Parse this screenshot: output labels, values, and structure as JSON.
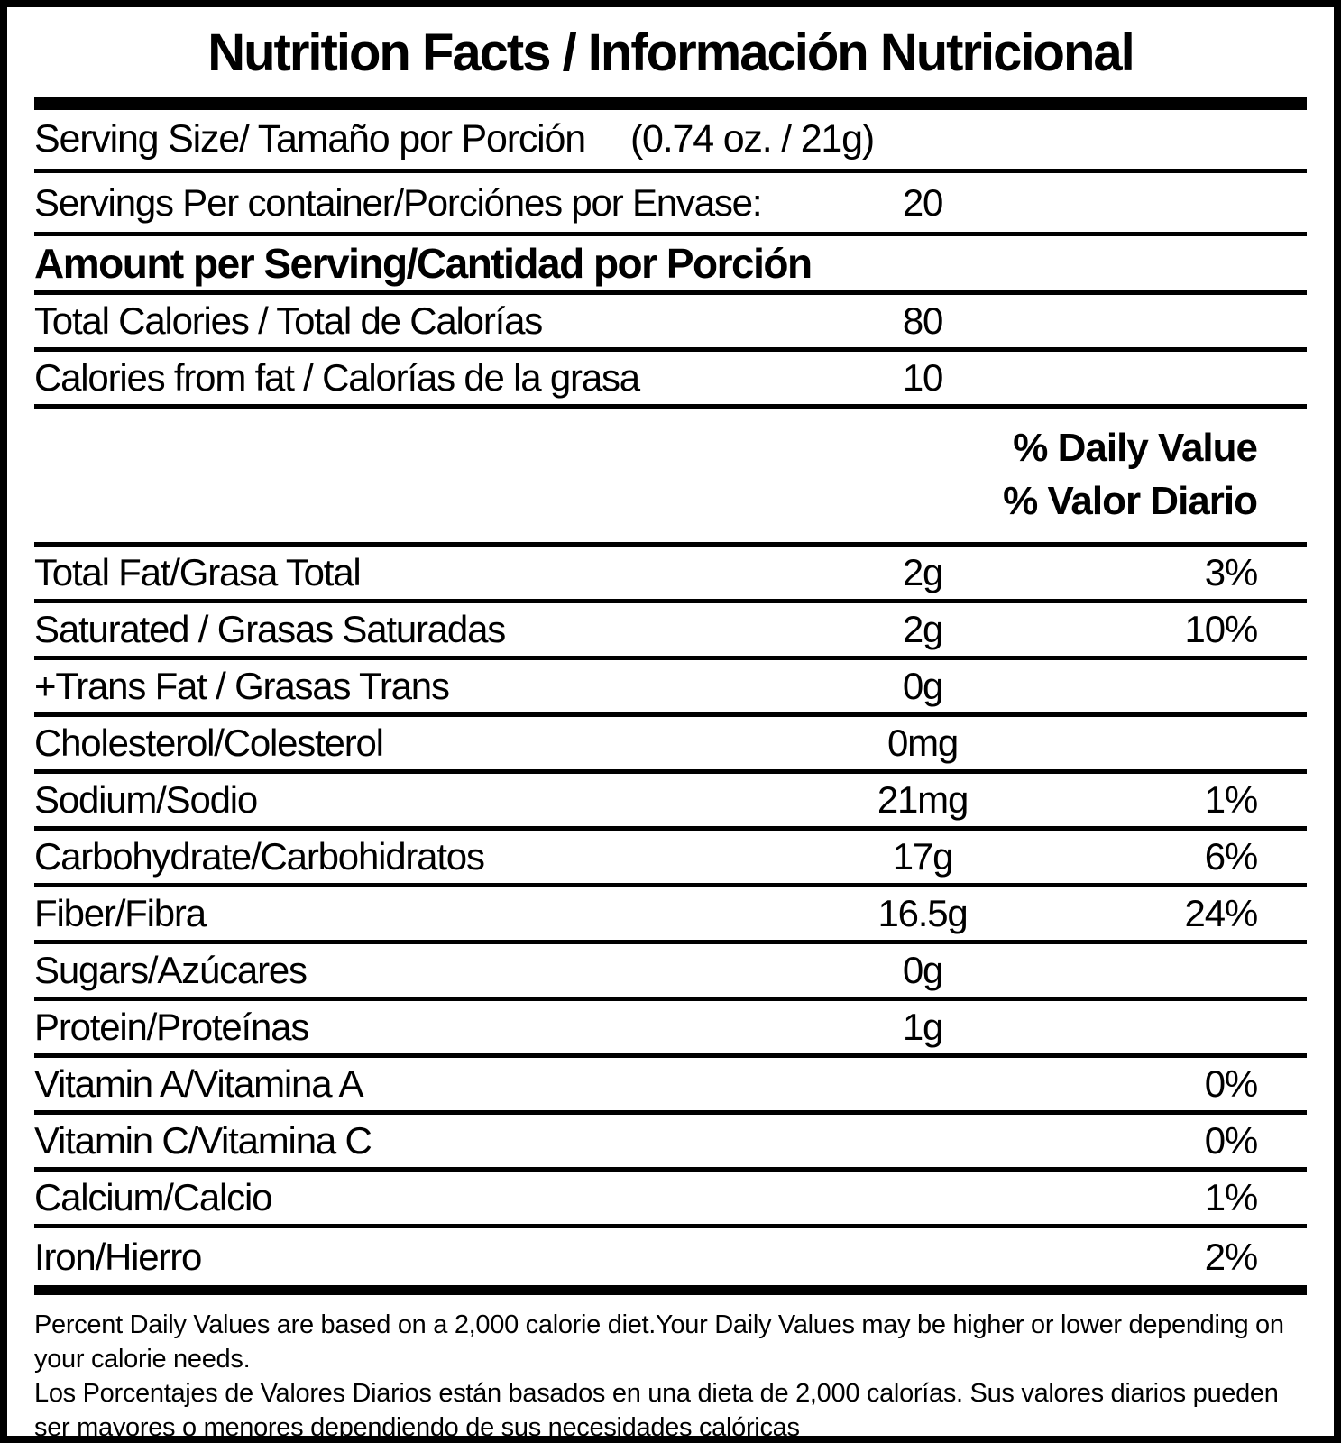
{
  "title": "Nutrition Facts / Información Nutricional",
  "serving_size": {
    "label": "Serving Size/ Tamaño por Porción",
    "value": "(0.74 oz. / 21g)"
  },
  "servings_per_container": {
    "label": "Servings Per container/Porciónes por Envase:",
    "value": "20"
  },
  "amount_per_serving_header": "Amount per Serving/Cantidad por Porción",
  "calorie_rows": [
    {
      "label": "Total Calories / Total de Calorías",
      "amount": "80"
    },
    {
      "label": "Calories from fat / Calorías de la grasa",
      "amount": "10"
    }
  ],
  "daily_value_header": {
    "line1": "% Daily Value",
    "line2": "% Valor Diario"
  },
  "nutrients": [
    {
      "label": "Total Fat/Grasa Total",
      "amount": "2g",
      "dv": "3%"
    },
    {
      "label": "Saturated / Grasas Saturadas",
      "amount": "2g",
      "dv": "10%"
    },
    {
      "label": "+Trans Fat / Grasas Trans",
      "amount": "0g",
      "dv": ""
    },
    {
      "label": "Cholesterol/Colesterol",
      "amount": "0mg",
      "dv": ""
    },
    {
      "label": "Sodium/Sodio",
      "amount": "21mg",
      "dv": "1%"
    },
    {
      "label": "Carbohydrate/Carbohidratos",
      "amount": "17g",
      "dv": "6%"
    },
    {
      "label": "Fiber/Fibra",
      "amount": "16.5g",
      "dv": "24%"
    },
    {
      "label": "Sugars/Azúcares",
      "amount": "0g",
      "dv": ""
    },
    {
      "label": "Protein/Proteínas",
      "amount": "1g",
      "dv": ""
    },
    {
      "label": "Vitamin A/Vitamina A",
      "amount": "",
      "dv": "0%"
    },
    {
      "label": "Vitamin C/Vitamina C",
      "amount": "",
      "dv": "0%"
    },
    {
      "label": "Calcium/Calcio",
      "amount": "",
      "dv": "1%"
    },
    {
      "label": "Iron/Hierro",
      "amount": "",
      "dv": "2%"
    }
  ],
  "footnotes": {
    "en": "Percent Daily Values are based on a 2,000 calorie diet.Your Daily Values may be higher or lower depending on your calorie needs.",
    "es": "Los Porcentajes de Valores Diarios están basados en una dieta de 2,000 calorías. Sus valores diarios pueden ser mayores o menores dependiendo de sus necesidades calóricas"
  },
  "colors": {
    "text": "#000000",
    "background": "#ffffff"
  }
}
